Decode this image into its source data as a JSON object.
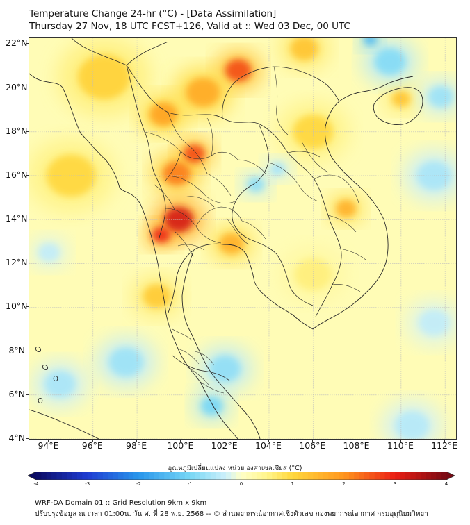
{
  "header": {
    "title_line1": "Temperature Change 24-hr (°C) - [Data Assimilation]",
    "title_line2": "Thursday 27 Nov, 18 UTC FCST+126, Valid at :: Wed 03 Dec, 00 UTC"
  },
  "map": {
    "lat_labels": [
      "22°N",
      "20°N",
      "18°N",
      "16°N",
      "14°N",
      "12°N",
      "10°N",
      "8°N",
      "6°N",
      "4°N"
    ],
    "lon_labels": [
      "94°E",
      "96°E",
      "98°E",
      "100°E",
      "102°E",
      "104°E",
      "106°E",
      "108°E",
      "110°E",
      "112°E"
    ],
    "lat_values": [
      22,
      20,
      18,
      16,
      14,
      12,
      10,
      8,
      6,
      4
    ],
    "lon_values": [
      94,
      96,
      98,
      100,
      102,
      104,
      106,
      108,
      110,
      112
    ],
    "lat_range": [
      4,
      22.3
    ],
    "lon_range": [
      93.1,
      112.5
    ],
    "warm_anomalies": [
      {
        "lat": 14.0,
        "lon": 99.9,
        "value": 3.2,
        "spread": 0.95
      },
      {
        "lat": 13.3,
        "lon": 99.1,
        "value": 2.9,
        "spread": 0.6
      },
      {
        "lat": 17.0,
        "lon": 100.6,
        "value": 2.6,
        "spread": 0.7
      },
      {
        "lat": 20.8,
        "lon": 102.6,
        "value": 2.6,
        "spread": 0.85
      },
      {
        "lat": 16.1,
        "lon": 99.8,
        "value": 2.2,
        "spread": 0.9
      },
      {
        "lat": 18.8,
        "lon": 99.2,
        "value": 1.8,
        "spread": 0.9
      },
      {
        "lat": 19.8,
        "lon": 101.0,
        "value": 1.7,
        "spread": 1.1
      },
      {
        "lat": 14.5,
        "lon": 107.5,
        "value": 1.6,
        "spread": 0.65
      },
      {
        "lat": 19.5,
        "lon": 110.0,
        "value": 1.3,
        "spread": 0.6
      },
      {
        "lat": 21.8,
        "lon": 105.6,
        "value": 1.3,
        "spread": 0.9
      },
      {
        "lat": 12.9,
        "lon": 102.3,
        "value": 1.6,
        "spread": 0.8
      },
      {
        "lat": 10.5,
        "lon": 98.9,
        "value": 1.2,
        "spread": 0.9
      },
      {
        "lat": 18.0,
        "lon": 106.0,
        "value": 1.0,
        "spread": 1.3
      },
      {
        "lat": 16.0,
        "lon": 95.0,
        "value": 1.0,
        "spread": 1.6
      },
      {
        "lat": 20.5,
        "lon": 96.5,
        "value": 1.1,
        "spread": 1.7
      },
      {
        "lat": 11.5,
        "lon": 106.0,
        "value": 0.6,
        "spread": 1.2
      }
    ],
    "cool_anomalies": [
      {
        "lat": 15.6,
        "lon": 103.4,
        "value": -0.8,
        "spread": 0.55
      },
      {
        "lat": 16.3,
        "lon": 104.4,
        "value": -0.6,
        "spread": 0.5
      },
      {
        "lat": 21.2,
        "lon": 109.5,
        "value": -0.9,
        "spread": 1.0
      },
      {
        "lat": 22.2,
        "lon": 108.6,
        "value": -1.4,
        "spread": 0.45
      },
      {
        "lat": 19.6,
        "lon": 111.8,
        "value": -0.7,
        "spread": 0.8
      },
      {
        "lat": 16.0,
        "lon": 111.5,
        "value": -0.6,
        "spread": 1.1
      },
      {
        "lat": 5.5,
        "lon": 101.4,
        "value": -1.0,
        "spread": 0.7
      },
      {
        "lat": 7.2,
        "lon": 102.0,
        "value": -0.8,
        "spread": 1.0
      },
      {
        "lat": 7.5,
        "lon": 97.5,
        "value": -0.7,
        "spread": 1.1
      },
      {
        "lat": 6.5,
        "lon": 94.5,
        "value": -0.6,
        "spread": 1.0
      },
      {
        "lat": 4.6,
        "lon": 110.5,
        "value": -0.5,
        "spread": 1.1
      },
      {
        "lat": 9.3,
        "lon": 111.5,
        "value": -0.4,
        "spread": 1.0
      },
      {
        "lat": 12.5,
        "lon": 94.0,
        "value": -0.4,
        "spread": 0.7
      }
    ]
  },
  "colorbar": {
    "caption": "อุณหภูมิเปลี่ยนแปลง หน่วย องศาเซลเซียส (°C)",
    "min": -4,
    "max": 4,
    "tick_values": [
      -4,
      -3,
      -2,
      -1,
      0,
      1,
      2,
      3,
      4
    ],
    "tick_labels": [
      "-4",
      "-3",
      "-2",
      "-1",
      "0",
      "1",
      "2",
      "3",
      "4"
    ]
  },
  "footer": {
    "line1": "WRF-DA Domain 01 :: Grid Resolution 9km x 9km",
    "line2": "ปรับปรุงข้อมูล ณ เวลา 01:00น. วัน ศ. ที่ 28 พ.ย. 2568 -- © ส่วนพยากรณ์อากาศเชิงตัวเลข กองพยากรณ์อากาศ กรมอุตุนิยมวิทยา"
  },
  "colors": {
    "frame": "#333333",
    "coast": "#2a2a2a",
    "grid": "#bdbdbd"
  }
}
